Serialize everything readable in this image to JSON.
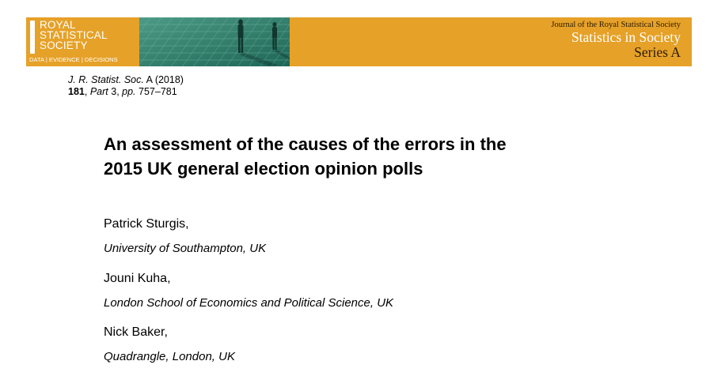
{
  "banner": {
    "logo_lines": [
      "ROYAL",
      "STATISTICAL",
      "SOCIETY"
    ],
    "logo_tagline": "DATA | EVIDENCE | DECISIONS",
    "journal_small": "Journal of the Royal Statistical Society",
    "journal_name": "Statistics in Society",
    "series": "Series A",
    "colors": {
      "banner": "#e6a128",
      "photo_tint": "#2e7f6e"
    }
  },
  "citation": {
    "journal_abbrev": "J. R. Statist. Soc.",
    "series_letter": "A",
    "year": "(2018)",
    "volume": "181",
    "part_label": "Part",
    "part": "3",
    "pages_label": "pp.",
    "pages": "757–781"
  },
  "title": {
    "line1": "An assessment of the causes of the errors in the",
    "line2": "2015 UK general election opinion polls"
  },
  "authors": [
    {
      "name": "Patrick Sturgis,",
      "affiliation": "University of Southampton, UK"
    },
    {
      "name": "Jouni Kuha,",
      "affiliation": "London School of Economics and Political Science, UK"
    },
    {
      "name": "Nick Baker,",
      "affiliation": "Quadrangle, London, UK"
    }
  ]
}
